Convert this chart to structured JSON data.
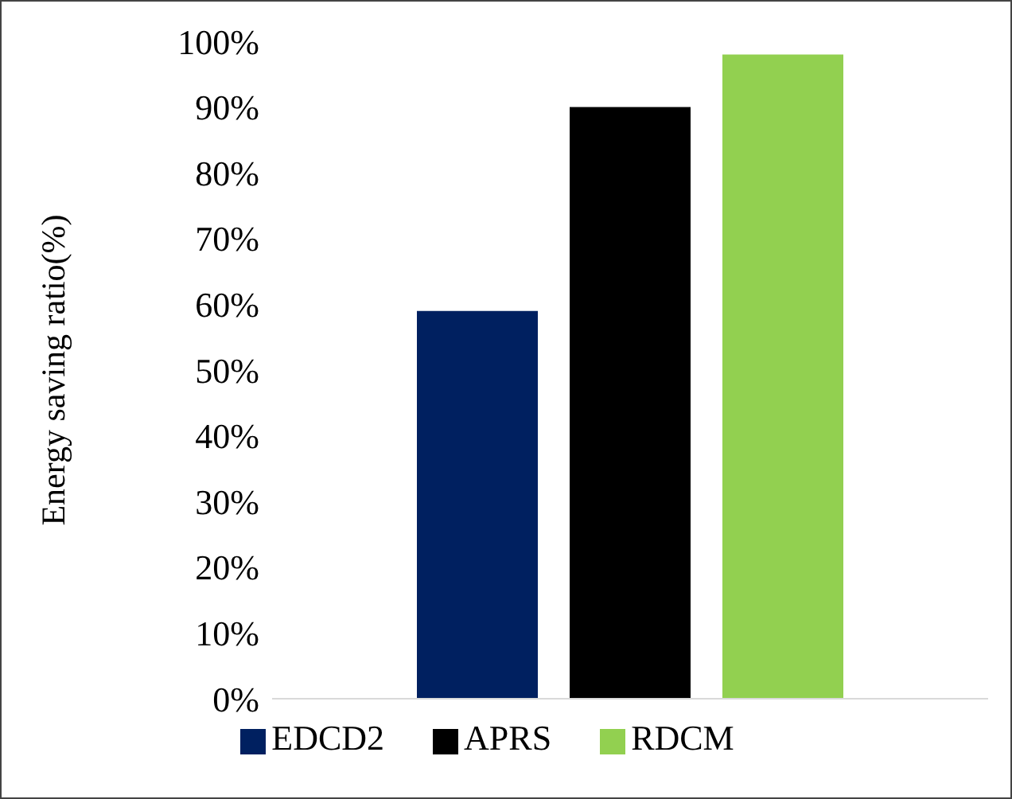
{
  "chart_data": {
    "type": "bar",
    "ylabel": "Energy saving ratio(%)",
    "categories": [
      null
    ],
    "series": [
      {
        "name": "EDCD2",
        "color": "#002060",
        "values": [
          59
        ]
      },
      {
        "name": "APRS",
        "color": "#000000",
        "values": [
          90
        ]
      },
      {
        "name": "RDCM",
        "color": "#92d050",
        "values": [
          98
        ]
      }
    ],
    "ylim": [
      0,
      100
    ],
    "yticks": [
      {
        "value": 0,
        "label": "0%"
      },
      {
        "value": 10,
        "label": "10%"
      },
      {
        "value": 20,
        "label": "20%"
      },
      {
        "value": 30,
        "label": "30%"
      },
      {
        "value": 40,
        "label": "40%"
      },
      {
        "value": 50,
        "label": "50%"
      },
      {
        "value": 60,
        "label": "60%"
      },
      {
        "value": 70,
        "label": "70%"
      },
      {
        "value": 80,
        "label": "80%"
      },
      {
        "value": 90,
        "label": "90%"
      },
      {
        "value": 100,
        "label": "100%"
      }
    ],
    "grid": false,
    "legend": "bottom"
  }
}
